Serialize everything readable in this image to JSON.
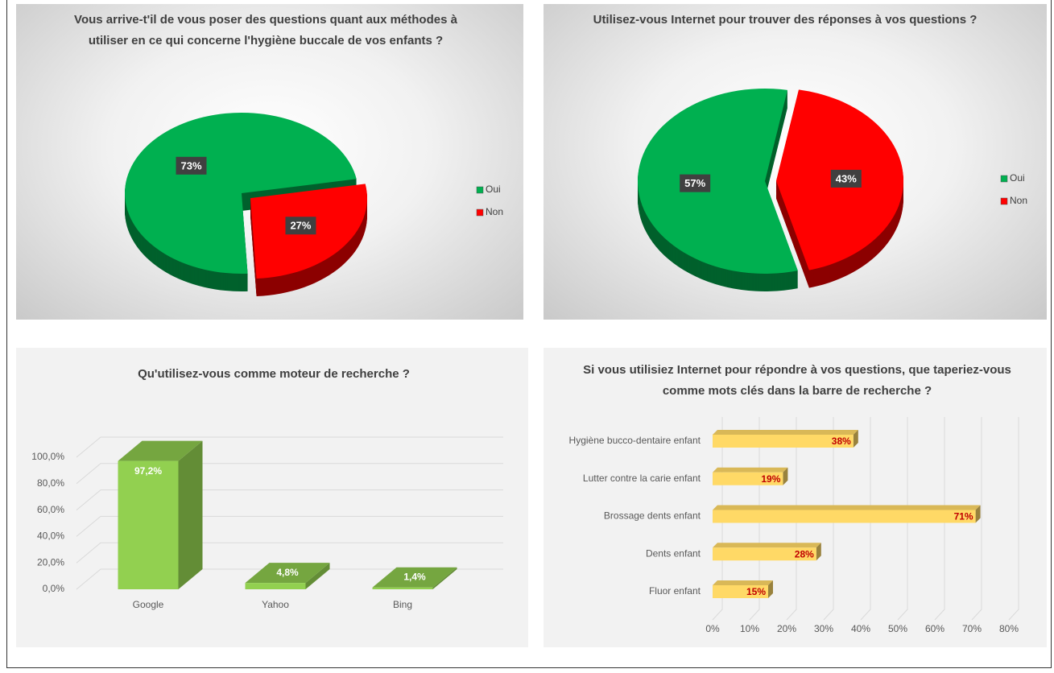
{
  "chart_data": [
    {
      "type": "pie",
      "title": "Vous arrive-t'il de vous poser des questions quant aux méthodes à utiliser en ce qui concerne l'hygiène buccale de vos enfants ?",
      "categories": [
        "Oui",
        "Non"
      ],
      "values": [
        73,
        27
      ],
      "value_labels": [
        "73%",
        "27%"
      ],
      "colors": [
        "#00b050",
        "#ff0000"
      ],
      "legend": "right"
    },
    {
      "type": "pie",
      "title": "Utilisez-vous Internet pour trouver des réponses à vos questions ?",
      "categories": [
        "Oui",
        "Non"
      ],
      "values": [
        57,
        43
      ],
      "value_labels": [
        "57%",
        "43%"
      ],
      "colors": [
        "#00b050",
        "#ff0000"
      ],
      "legend": "right"
    },
    {
      "type": "bar",
      "title": "Qu'utilisez-vous comme moteur de recherche ?",
      "categories": [
        "Google",
        "Yahoo",
        "Bing"
      ],
      "values": [
        97.2,
        4.8,
        1.4
      ],
      "value_labels": [
        "97,2%",
        "4,8%",
        "1,4%"
      ],
      "color": "#92d050",
      "ylim": [
        0,
        100
      ],
      "yticks": [
        {
          "value": 0,
          "label": "0,0%"
        },
        {
          "value": 20,
          "label": "20,0%"
        },
        {
          "value": 40,
          "label": "40,0%"
        },
        {
          "value": 60,
          "label": "60,0%"
        },
        {
          "value": 80,
          "label": "80,0%"
        },
        {
          "value": 100,
          "label": "100,0%"
        }
      ],
      "grid": true
    },
    {
      "type": "bar",
      "orientation": "horizontal",
      "title": "Si vous utilisiez Internet pour répondre à vos questions, que taperiez-vous comme mots clés dans la barre de recherche ?",
      "categories": [
        "Hygiène bucco-dentaire enfant",
        "Lutter contre la carie enfant",
        "Brossage dents enfant",
        "Dents enfant",
        "Fluor enfant"
      ],
      "values": [
        38,
        19,
        71,
        28,
        15
      ],
      "value_labels": [
        "38%",
        "19%",
        "71%",
        "28%",
        "15%"
      ],
      "color": "#ffd966",
      "xlim": [
        0,
        80
      ],
      "xticks": [
        {
          "value": 0,
          "label": "0%"
        },
        {
          "value": 10,
          "label": "10%"
        },
        {
          "value": 20,
          "label": "20%"
        },
        {
          "value": 30,
          "label": "30%"
        },
        {
          "value": 40,
          "label": "40%"
        },
        {
          "value": 50,
          "label": "50%"
        },
        {
          "value": 60,
          "label": "60%"
        },
        {
          "value": 70,
          "label": "70%"
        },
        {
          "value": 80,
          "label": "80%"
        }
      ],
      "grid": true
    }
  ]
}
